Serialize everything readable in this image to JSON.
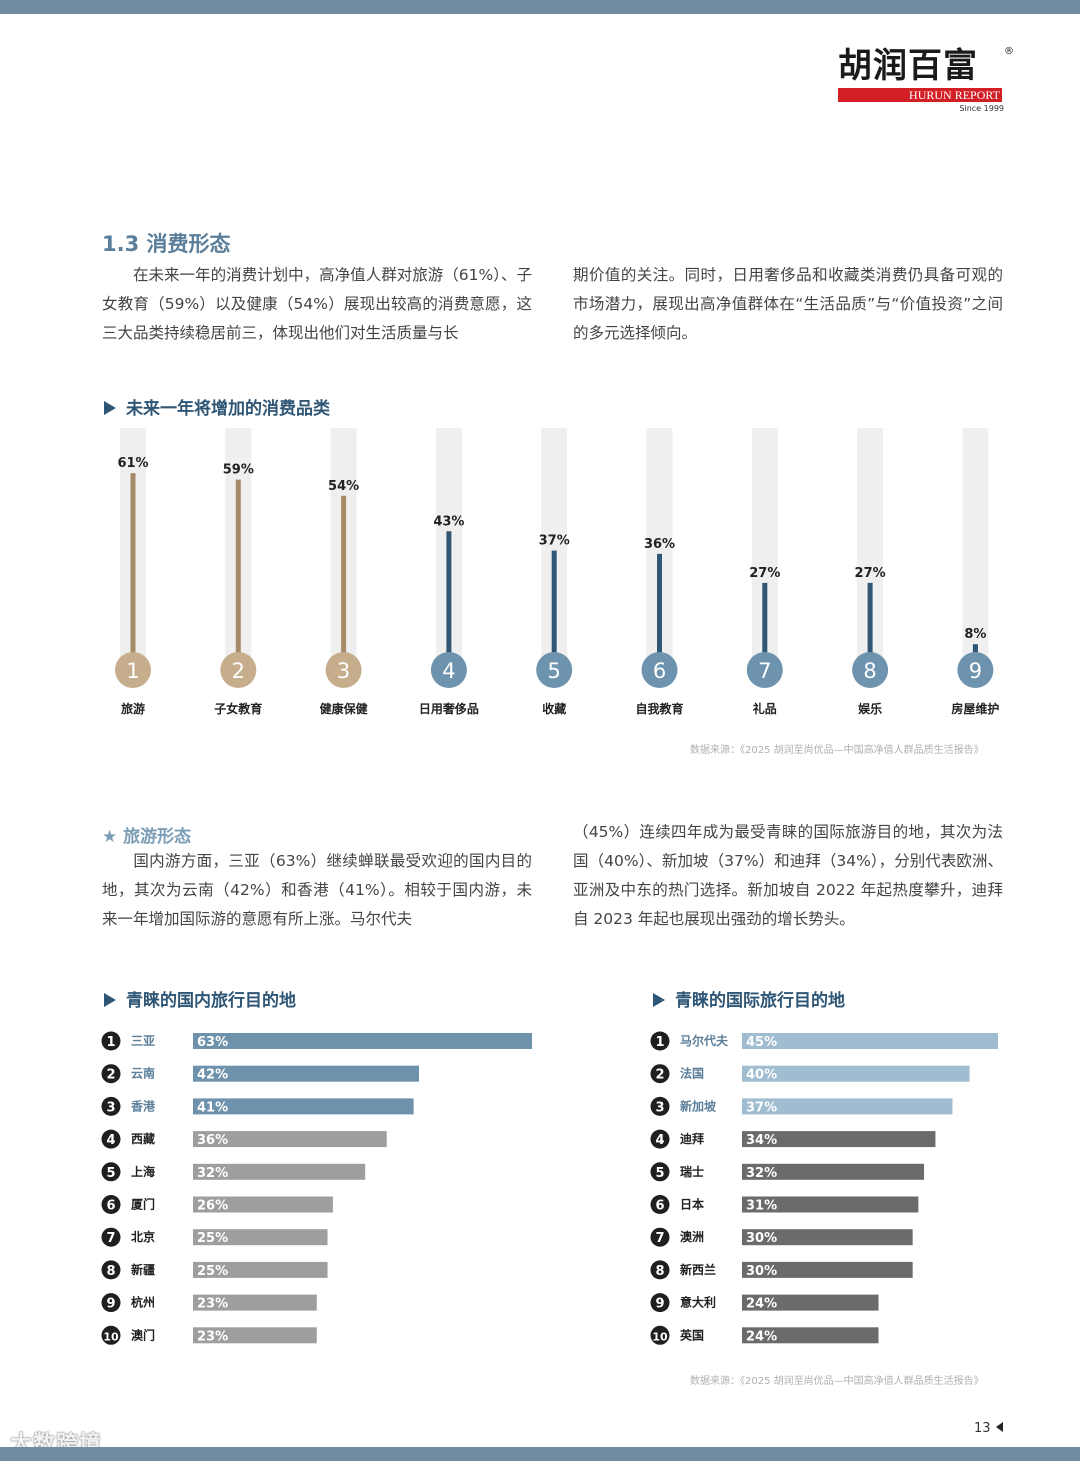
{
  "logo": {
    "cn": "胡润百富",
    "reg": "®",
    "en": "HURUN REPORT",
    "since": "Since 1999"
  },
  "section": {
    "title": "1.3 消费形态",
    "para_left": "在未来一年的消费计划中，高净值人群对旅游（61%）、子女教育（59%）以及健康（54%）展现出较高的消费意愿，这三大品类持续稳居前三，体现出他们对生活质量与长",
    "para_right": "期价值的关注。同时，日用奢侈品和收藏类消费仍具备可观的市场潜力，展现出高净值群体在“生活品质”与“价值投资”之间的多元选择倾向。"
  },
  "chart1_title": "未来一年将增加的消费品类",
  "source_1": "数据来源：《2025 胡润至尚优品—中国高净值人群品质生活报告》",
  "travel": {
    "title": "旅游形态",
    "para_left": "国内游方面，三亚（63%）继续蝉联最受欢迎的国内目的地，其次为云南（42%）和香港（41%）。相较于国内游，未来一年增加国际游的意愿有所上涨。马尔代夫",
    "para_right": "（45%）连续四年成为最受青睐的国际旅游目的地，其次为法国（40%）、新加坡（37%）和迪拜（34%），分别代表欧洲、亚洲及中东的热门选择。新加坡自 2022 年起热度攀升，迪拜自 2023 年起也展现出强劲的增长势头。"
  },
  "chart2_title": "青睐的国内旅行目的地",
  "chart3_title": "青睐的国际旅行目的地",
  "source_2": "数据来源：《2025 胡润至尚优品—中国高净值人群品质生活报告》",
  "page_number": "13",
  "watermark": "大数跨境",
  "colors": {
    "gold": "#a58a68",
    "blue": "#2f5675",
    "steel": "#6e92ab",
    "light_blue": "#9fbcd0",
    "gray": "#9e9e9e",
    "dark_gray": "#6b6b6b",
    "track": "#efefef"
  },
  "chart_data": [
    {
      "type": "bar",
      "orientation": "vertical",
      "title": "未来一年将增加的消费品类",
      "categories": [
        "旅游",
        "子女教育",
        "健康保健",
        "日用奢侈品",
        "收藏",
        "自我教育",
        "礼品",
        "娱乐",
        "房屋维护"
      ],
      "ranks": [
        "1",
        "2",
        "3",
        "4",
        "5",
        "6",
        "7",
        "8",
        "9"
      ],
      "values": [
        61,
        59,
        54,
        43,
        37,
        36,
        27,
        27,
        8
      ],
      "labels": [
        "61%",
        "59%",
        "54%",
        "43%",
        "37%",
        "36%",
        "27%",
        "27%",
        "8%"
      ],
      "ylim": [
        0,
        75
      ],
      "highlight_top": 3
    },
    {
      "type": "bar",
      "orientation": "horizontal",
      "title": "青睐的国内旅行目的地",
      "categories": [
        "三亚",
        "云南",
        "香港",
        "西藏",
        "上海",
        "厦门",
        "北京",
        "新疆",
        "杭州",
        "澳门"
      ],
      "ranks": [
        "1",
        "2",
        "3",
        "4",
        "5",
        "6",
        "7",
        "8",
        "9",
        "10"
      ],
      "values": [
        63,
        42,
        41,
        36,
        32,
        26,
        25,
        25,
        23,
        23
      ],
      "labels": [
        "63%",
        "42%",
        "41%",
        "36%",
        "32%",
        "26%",
        "25%",
        "25%",
        "23%",
        "23%"
      ],
      "xlim": [
        0,
        63
      ],
      "highlight_top": 3
    },
    {
      "type": "bar",
      "orientation": "horizontal",
      "title": "青睐的国际旅行目的地",
      "categories": [
        "马尔代夫",
        "法国",
        "新加坡",
        "迪拜",
        "瑞士",
        "日本",
        "澳洲",
        "新西兰",
        "意大利",
        "英国"
      ],
      "ranks": [
        "1",
        "2",
        "3",
        "4",
        "5",
        "6",
        "7",
        "8",
        "9",
        "10"
      ],
      "values": [
        45,
        40,
        37,
        34,
        32,
        31,
        30,
        30,
        24,
        24
      ],
      "labels": [
        "45%",
        "40%",
        "37%",
        "34%",
        "32%",
        "31%",
        "30%",
        "30%",
        "24%",
        "24%"
      ],
      "xlim": [
        0,
        45
      ],
      "highlight_top": 3
    }
  ]
}
